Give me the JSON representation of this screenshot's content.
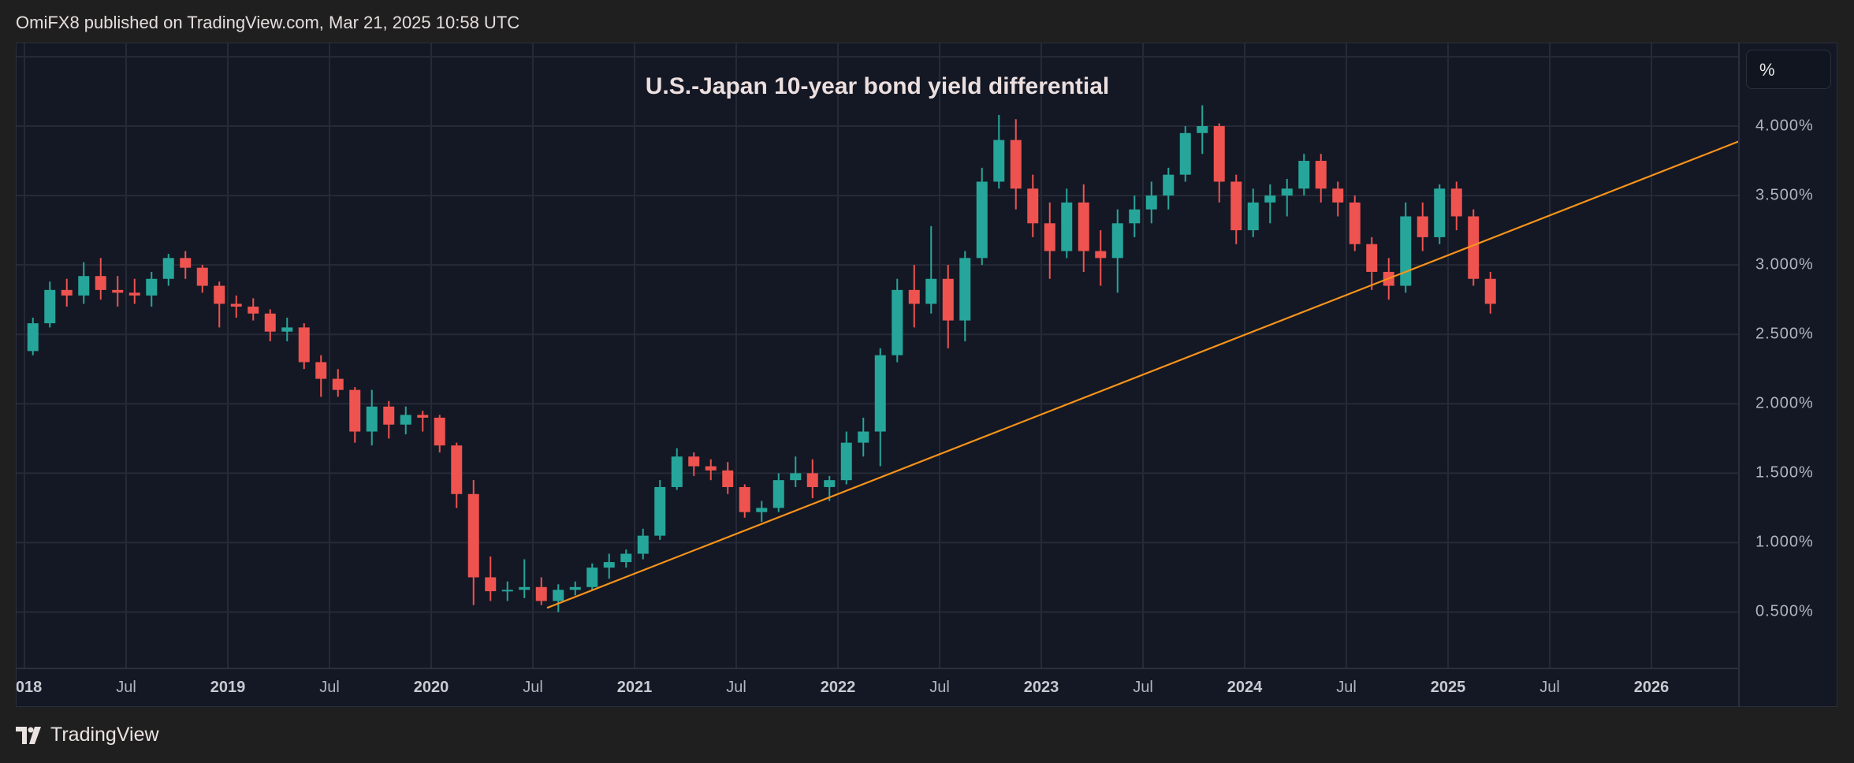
{
  "header": {
    "published": "OmiFX8 published on TradingView.com, Mar 21, 2025 10:58 UTC"
  },
  "logo": {
    "text": "TradingView"
  },
  "price_axis": {
    "unit_button": "%"
  },
  "chart_data": {
    "type": "candlestick",
    "title": "U.S.-Japan 10-year bond yield differential",
    "xlabel": "",
    "ylabel": "",
    "ylim": [
      0.2,
      4.6
    ],
    "xlim": [
      "2017-12-15",
      "2026-09-30"
    ],
    "grid": true,
    "colors": {
      "up": "#26a69a",
      "down": "#ef5350",
      "trendline": "#f7931a",
      "background": "#141824",
      "grid": "#262a36"
    },
    "y_ticks": [
      {
        "value": 4.0,
        "label": "4.000%"
      },
      {
        "value": 3.5,
        "label": "3.500%"
      },
      {
        "value": 3.0,
        "label": "3.000%"
      },
      {
        "value": 2.5,
        "label": "2.500%"
      },
      {
        "value": 2.0,
        "label": "2.000%"
      },
      {
        "value": 1.5,
        "label": "1.500%"
      },
      {
        "value": 1.0,
        "label": "1.000%"
      },
      {
        "value": 0.5,
        "label": "0.500%"
      }
    ],
    "x_ticks": [
      {
        "date": 2018.0,
        "label": "2018",
        "year": true
      },
      {
        "date": 2018.5,
        "label": "Jul"
      },
      {
        "date": 2019.0,
        "label": "2019",
        "year": true
      },
      {
        "date": 2019.5,
        "label": "Jul"
      },
      {
        "date": 2020.0,
        "label": "2020",
        "year": true
      },
      {
        "date": 2020.5,
        "label": "Jul"
      },
      {
        "date": 2021.0,
        "label": "2021",
        "year": true
      },
      {
        "date": 2021.5,
        "label": "Jul"
      },
      {
        "date": 2022.0,
        "label": "2022",
        "year": true
      },
      {
        "date": 2022.5,
        "label": "Jul"
      },
      {
        "date": 2023.0,
        "label": "2023",
        "year": true
      },
      {
        "date": 2023.5,
        "label": "Jul"
      },
      {
        "date": 2024.0,
        "label": "2024",
        "year": true
      },
      {
        "date": 2024.5,
        "label": "Jul"
      },
      {
        "date": 2025.0,
        "label": "2025",
        "year": true
      },
      {
        "date": 2025.5,
        "label": "Jul"
      },
      {
        "date": 2026.0,
        "label": "2026",
        "year": true
      }
    ],
    "ohlc_fields": [
      "month",
      "open",
      "high",
      "low",
      "close"
    ],
    "ohlc": [
      [
        "2018-01",
        2.38,
        2.62,
        2.35,
        2.58
      ],
      [
        "2018-02",
        2.58,
        2.88,
        2.55,
        2.82
      ],
      [
        "2018-03",
        2.82,
        2.9,
        2.7,
        2.78
      ],
      [
        "2018-04",
        2.78,
        3.02,
        2.72,
        2.92
      ],
      [
        "2018-05",
        2.92,
        3.05,
        2.75,
        2.82
      ],
      [
        "2018-06",
        2.82,
        2.92,
        2.7,
        2.8
      ],
      [
        "2018-07",
        2.8,
        2.9,
        2.72,
        2.78
      ],
      [
        "2018-08",
        2.78,
        2.95,
        2.7,
        2.9
      ],
      [
        "2018-09",
        2.9,
        3.08,
        2.85,
        3.05
      ],
      [
        "2018-10",
        3.05,
        3.1,
        2.9,
        2.98
      ],
      [
        "2018-11",
        2.98,
        3.0,
        2.8,
        2.85
      ],
      [
        "2018-12",
        2.85,
        2.88,
        2.55,
        2.72
      ],
      [
        "2019-01",
        2.72,
        2.78,
        2.62,
        2.7
      ],
      [
        "2019-02",
        2.7,
        2.76,
        2.6,
        2.65
      ],
      [
        "2019-03",
        2.65,
        2.68,
        2.45,
        2.52
      ],
      [
        "2019-04",
        2.52,
        2.62,
        2.45,
        2.55
      ],
      [
        "2019-05",
        2.55,
        2.58,
        2.25,
        2.3
      ],
      [
        "2019-06",
        2.3,
        2.35,
        2.05,
        2.18
      ],
      [
        "2019-07",
        2.18,
        2.25,
        2.05,
        2.1
      ],
      [
        "2019-08",
        2.1,
        2.12,
        1.72,
        1.8
      ],
      [
        "2019-09",
        1.8,
        2.1,
        1.7,
        1.98
      ],
      [
        "2019-10",
        1.98,
        2.02,
        1.75,
        1.85
      ],
      [
        "2019-11",
        1.85,
        1.98,
        1.78,
        1.92
      ],
      [
        "2019-12",
        1.92,
        1.95,
        1.8,
        1.9
      ],
      [
        "2020-01",
        1.9,
        1.92,
        1.65,
        1.7
      ],
      [
        "2020-02",
        1.7,
        1.72,
        1.25,
        1.35
      ],
      [
        "2020-03",
        1.35,
        1.45,
        0.55,
        0.75
      ],
      [
        "2020-04",
        0.75,
        0.9,
        0.58,
        0.65
      ],
      [
        "2020-05",
        0.65,
        0.72,
        0.58,
        0.66
      ],
      [
        "2020-06",
        0.66,
        0.88,
        0.6,
        0.68
      ],
      [
        "2020-07",
        0.68,
        0.75,
        0.55,
        0.58
      ],
      [
        "2020-08",
        0.58,
        0.7,
        0.5,
        0.66
      ],
      [
        "2020-09",
        0.66,
        0.72,
        0.62,
        0.68
      ],
      [
        "2020-10",
        0.68,
        0.85,
        0.66,
        0.82
      ],
      [
        "2020-11",
        0.82,
        0.92,
        0.74,
        0.86
      ],
      [
        "2020-12",
        0.86,
        0.95,
        0.82,
        0.92
      ],
      [
        "2021-01",
        0.92,
        1.1,
        0.88,
        1.05
      ],
      [
        "2021-02",
        1.05,
        1.45,
        1.02,
        1.4
      ],
      [
        "2021-03",
        1.4,
        1.68,
        1.38,
        1.62
      ],
      [
        "2021-04",
        1.62,
        1.65,
        1.48,
        1.55
      ],
      [
        "2021-05",
        1.55,
        1.6,
        1.45,
        1.52
      ],
      [
        "2021-06",
        1.52,
        1.58,
        1.35,
        1.4
      ],
      [
        "2021-07",
        1.4,
        1.42,
        1.18,
        1.22
      ],
      [
        "2021-08",
        1.22,
        1.3,
        1.15,
        1.25
      ],
      [
        "2021-09",
        1.25,
        1.5,
        1.22,
        1.45
      ],
      [
        "2021-10",
        1.45,
        1.62,
        1.4,
        1.5
      ],
      [
        "2021-11",
        1.5,
        1.6,
        1.32,
        1.4
      ],
      [
        "2021-12",
        1.4,
        1.48,
        1.3,
        1.45
      ],
      [
        "2022-01",
        1.45,
        1.8,
        1.42,
        1.72
      ],
      [
        "2022-02",
        1.72,
        1.9,
        1.62,
        1.8
      ],
      [
        "2022-03",
        1.8,
        2.4,
        1.55,
        2.35
      ],
      [
        "2022-04",
        2.35,
        2.9,
        2.3,
        2.82
      ],
      [
        "2022-05",
        2.82,
        3.0,
        2.55,
        2.72
      ],
      [
        "2022-06",
        2.72,
        3.28,
        2.65,
        2.9
      ],
      [
        "2022-07",
        2.9,
        3.0,
        2.4,
        2.6
      ],
      [
        "2022-08",
        2.6,
        3.1,
        2.45,
        3.05
      ],
      [
        "2022-09",
        3.05,
        3.7,
        3.0,
        3.6
      ],
      [
        "2022-10",
        3.6,
        4.08,
        3.55,
        3.9
      ],
      [
        "2022-11",
        3.9,
        4.05,
        3.4,
        3.55
      ],
      [
        "2022-12",
        3.55,
        3.65,
        3.2,
        3.3
      ],
      [
        "2023-01",
        3.3,
        3.45,
        2.9,
        3.1
      ],
      [
        "2023-02",
        3.1,
        3.55,
        3.05,
        3.45
      ],
      [
        "2023-03",
        3.45,
        3.58,
        2.95,
        3.1
      ],
      [
        "2023-04",
        3.1,
        3.25,
        2.85,
        3.05
      ],
      [
        "2023-05",
        3.05,
        3.4,
        2.8,
        3.3
      ],
      [
        "2023-06",
        3.3,
        3.5,
        3.2,
        3.4
      ],
      [
        "2023-07",
        3.4,
        3.6,
        3.3,
        3.5
      ],
      [
        "2023-08",
        3.5,
        3.7,
        3.4,
        3.65
      ],
      [
        "2023-09",
        3.65,
        4.0,
        3.6,
        3.95
      ],
      [
        "2023-10",
        3.95,
        4.15,
        3.8,
        4.0
      ],
      [
        "2023-11",
        4.0,
        4.02,
        3.45,
        3.6
      ],
      [
        "2023-12",
        3.6,
        3.65,
        3.15,
        3.25
      ],
      [
        "2024-01",
        3.25,
        3.55,
        3.2,
        3.45
      ],
      [
        "2024-02",
        3.45,
        3.58,
        3.3,
        3.5
      ],
      [
        "2024-03",
        3.5,
        3.62,
        3.35,
        3.55
      ],
      [
        "2024-04",
        3.55,
        3.8,
        3.5,
        3.75
      ],
      [
        "2024-05",
        3.75,
        3.8,
        3.45,
        3.55
      ],
      [
        "2024-06",
        3.55,
        3.6,
        3.35,
        3.45
      ],
      [
        "2024-07",
        3.45,
        3.5,
        3.1,
        3.15
      ],
      [
        "2024-08",
        3.15,
        3.2,
        2.82,
        2.95
      ],
      [
        "2024-09",
        2.95,
        3.05,
        2.75,
        2.85
      ],
      [
        "2024-10",
        2.85,
        3.45,
        2.8,
        3.35
      ],
      [
        "2024-11",
        3.35,
        3.45,
        3.1,
        3.2
      ],
      [
        "2024-12",
        3.2,
        3.58,
        3.15,
        3.55
      ],
      [
        "2025-01",
        3.55,
        3.6,
        3.25,
        3.35
      ],
      [
        "2025-02",
        3.35,
        3.4,
        2.85,
        2.9
      ],
      [
        "2025-03",
        2.9,
        2.95,
        2.65,
        2.72
      ]
    ],
    "trendline": [
      {
        "date": 2020.57,
        "value": 0.53
      },
      {
        "date": 2026.43,
        "value": 3.89
      }
    ]
  }
}
